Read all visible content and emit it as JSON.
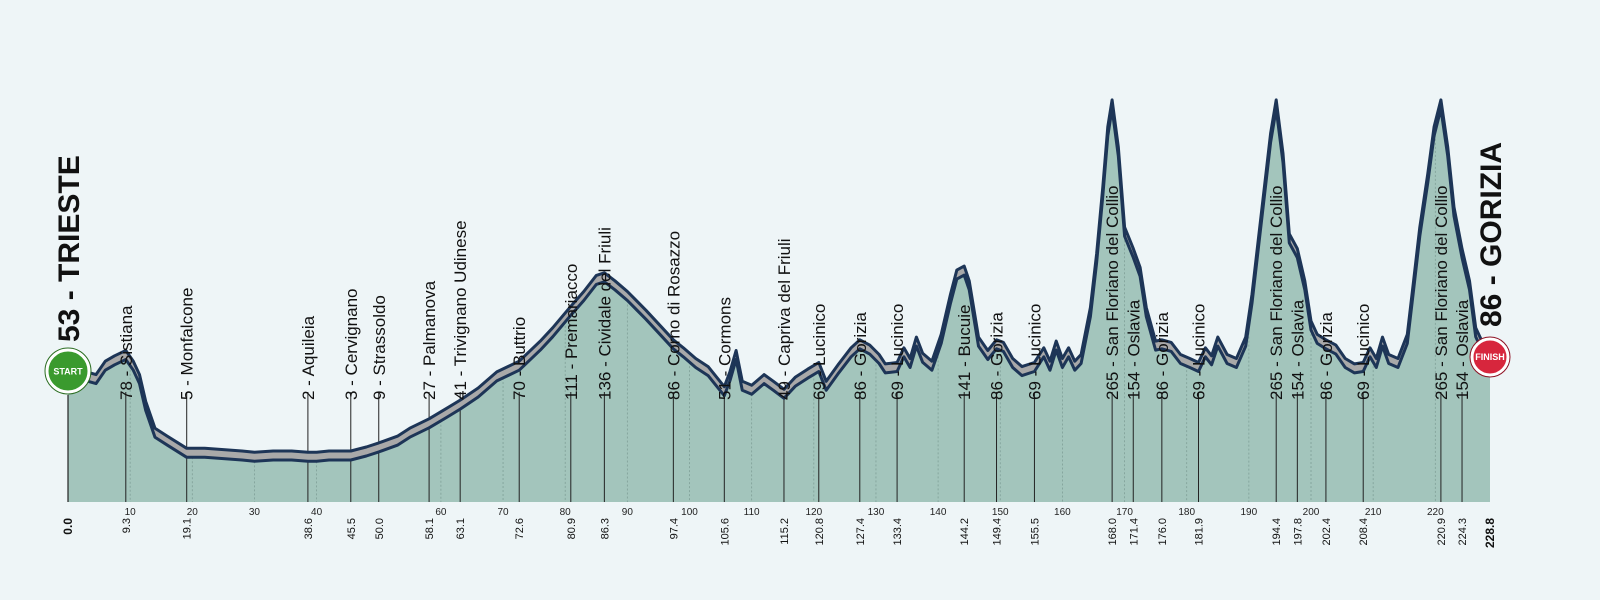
{
  "colors": {
    "background": "#eef5f7",
    "terrain": "#a3c5bc",
    "road_fill": "#a9a9a9",
    "road_outline": "#1d3557",
    "start_badge": "#3a9a2e",
    "finish_badge": "#d7263d"
  },
  "badges": {
    "start": "START",
    "finish": "FINISH"
  },
  "chart_data": {
    "type": "area",
    "title": "",
    "xlabel": "",
    "ylabel": "",
    "xlim": [
      0,
      228.8
    ],
    "ylim": [
      -120,
      330
    ],
    "x_ticks": [
      10,
      20,
      30,
      40,
      60,
      70,
      80,
      90,
      100,
      110,
      120,
      130,
      140,
      150,
      160,
      170,
      180,
      190,
      200,
      210,
      220
    ],
    "profile": [
      [
        0,
        53
      ],
      [
        1.5,
        58
      ],
      [
        3,
        62
      ],
      [
        4.5,
        60
      ],
      [
        6,
        70
      ],
      [
        7.5,
        74
      ],
      [
        9.3,
        78
      ],
      [
        10.5,
        70
      ],
      [
        11.5,
        60
      ],
      [
        12.5,
        40
      ],
      [
        14,
        20
      ],
      [
        16,
        14
      ],
      [
        19.1,
        5
      ],
      [
        22,
        5
      ],
      [
        25,
        4
      ],
      [
        28,
        3
      ],
      [
        30,
        2
      ],
      [
        33,
        3
      ],
      [
        36,
        3
      ],
      [
        38.6,
        2
      ],
      [
        40,
        2
      ],
      [
        42,
        3
      ],
      [
        45.5,
        3
      ],
      [
        48,
        6
      ],
      [
        50,
        9
      ],
      [
        53,
        14
      ],
      [
        55,
        20
      ],
      [
        58.1,
        27
      ],
      [
        61,
        35
      ],
      [
        63.1,
        41
      ],
      [
        66,
        50
      ],
      [
        69,
        62
      ],
      [
        72.6,
        70
      ],
      [
        76,
        85
      ],
      [
        78,
        95
      ],
      [
        80.9,
        111
      ],
      [
        83,
        122
      ],
      [
        85,
        134
      ],
      [
        86.3,
        136
      ],
      [
        88,
        130
      ],
      [
        90,
        122
      ],
      [
        93,
        108
      ],
      [
        95,
        98
      ],
      [
        97.4,
        86
      ],
      [
        99,
        80
      ],
      [
        101,
        72
      ],
      [
        103,
        66
      ],
      [
        105.6,
        51
      ],
      [
        106.5,
        62
      ],
      [
        107.5,
        78
      ],
      [
        108.5,
        55
      ],
      [
        110,
        52
      ],
      [
        112,
        60
      ],
      [
        113.5,
        55
      ],
      [
        115.2,
        49
      ],
      [
        117,
        58
      ],
      [
        119,
        64
      ],
      [
        120.8,
        69
      ],
      [
        122,
        55
      ],
      [
        124,
        68
      ],
      [
        126,
        80
      ],
      [
        127.4,
        86
      ],
      [
        129,
        82
      ],
      [
        130.5,
        75
      ],
      [
        131.5,
        68
      ],
      [
        133.4,
        69
      ],
      [
        134.5,
        80
      ],
      [
        135.5,
        72
      ],
      [
        136.5,
        88
      ],
      [
        137.5,
        76
      ],
      [
        139,
        70
      ],
      [
        140.5,
        90
      ],
      [
        142,
        120
      ],
      [
        143,
        138
      ],
      [
        144.2,
        141
      ],
      [
        145,
        130
      ],
      [
        146.5,
        88
      ],
      [
        148,
        78
      ],
      [
        149.4,
        86
      ],
      [
        150.5,
        84
      ],
      [
        152,
        72
      ],
      [
        153.5,
        66
      ],
      [
        155.5,
        69
      ],
      [
        157,
        80
      ],
      [
        158,
        70
      ],
      [
        159,
        85
      ],
      [
        160,
        72
      ],
      [
        161,
        80
      ],
      [
        162,
        70
      ],
      [
        163,
        75
      ],
      [
        164.5,
        110
      ],
      [
        165.5,
        150
      ],
      [
        166.5,
        200
      ],
      [
        167.3,
        245
      ],
      [
        168,
        265
      ],
      [
        169,
        230
      ],
      [
        170,
        170
      ],
      [
        171.4,
        154
      ],
      [
        172.5,
        140
      ],
      [
        173.5,
        110
      ],
      [
        175,
        85
      ],
      [
        176,
        86
      ],
      [
        177.5,
        84
      ],
      [
        179,
        75
      ],
      [
        180.5,
        72
      ],
      [
        181.9,
        69
      ],
      [
        183,
        80
      ],
      [
        184,
        74
      ],
      [
        185,
        88
      ],
      [
        186.5,
        75
      ],
      [
        188,
        72
      ],
      [
        189.5,
        88
      ],
      [
        190.5,
        120
      ],
      [
        191.5,
        160
      ],
      [
        192.5,
        200
      ],
      [
        193.5,
        240
      ],
      [
        194.4,
        265
      ],
      [
        195.5,
        225
      ],
      [
        196.5,
        165
      ],
      [
        197.8,
        154
      ],
      [
        199,
        130
      ],
      [
        200,
        100
      ],
      [
        201,
        90
      ],
      [
        202.4,
        86
      ],
      [
        204,
        82
      ],
      [
        205.5,
        72
      ],
      [
        207,
        68
      ],
      [
        208.4,
        69
      ],
      [
        209.5,
        80
      ],
      [
        210.5,
        72
      ],
      [
        211.5,
        88
      ],
      [
        212.5,
        75
      ],
      [
        214,
        72
      ],
      [
        215.5,
        90
      ],
      [
        216.5,
        130
      ],
      [
        217.5,
        170
      ],
      [
        218.8,
        210
      ],
      [
        219.8,
        245
      ],
      [
        220.9,
        265
      ],
      [
        222,
        230
      ],
      [
        223,
        185
      ],
      [
        224.3,
        154
      ],
      [
        225.5,
        130
      ],
      [
        226.5,
        95
      ],
      [
        227.5,
        85
      ],
      [
        228.8,
        86
      ]
    ],
    "start_label": "53 - TRIESTE",
    "finish_label": "86 - GORIZIA",
    "waypoints": [
      {
        "km": "9.3",
        "label": "78 - Sistiana"
      },
      {
        "km": "19.1",
        "label": "5 - Monfalcone"
      },
      {
        "km": "38.6",
        "label": "2 - Aquileia"
      },
      {
        "km": "45.5",
        "label": "3 - Cervignano"
      },
      {
        "km": "50.0",
        "label": "9 - Strassoldo"
      },
      {
        "km": "58.1",
        "label": "27 - Palmanova"
      },
      {
        "km": "63.1",
        "label": "41 - Trivignano Udinese"
      },
      {
        "km": "72.6",
        "label": "70 - Buttrio"
      },
      {
        "km": "80.9",
        "label": "111 - Premariacco"
      },
      {
        "km": "86.3",
        "label": "136 - Cividale del Friuli"
      },
      {
        "km": "97.4",
        "label": "86 - Corno di Rosazzo"
      },
      {
        "km": "105.6",
        "label": "51 - Cormons"
      },
      {
        "km": "115.2",
        "label": "49 - Capriva del Friuli"
      },
      {
        "km": "120.8",
        "label": "69 - Lucinico"
      },
      {
        "km": "127.4",
        "label": "86 - Gorizia"
      },
      {
        "km": "133.4",
        "label": "69 - Lucinico"
      },
      {
        "km": "144.2",
        "label": "141 - Bucuie"
      },
      {
        "km": "149.4",
        "label": "86 - Gorizia"
      },
      {
        "km": "155.5",
        "label": "69 - Lucinico"
      },
      {
        "km": "168.0",
        "label": "265 - San Floriano del Collio"
      },
      {
        "km": "171.4",
        "label": "154 - Oslavia"
      },
      {
        "km": "176.0",
        "label": "86 - Gorizia"
      },
      {
        "km": "181.9",
        "label": "69 - Lucinico"
      },
      {
        "km": "194.4",
        "label": "265 - San Floriano del Collio"
      },
      {
        "km": "197.8",
        "label": "154 - Oslavia"
      },
      {
        "km": "202.4",
        "label": "86 - Gorizia"
      },
      {
        "km": "208.4",
        "label": "69 - Lucinico"
      },
      {
        "km": "220.9",
        "label": "265 - San Floriano del Collio"
      },
      {
        "km": "224.3",
        "label": "154 - Oslavia"
      }
    ],
    "start_km": "0.0",
    "finish_km": "228.8"
  }
}
